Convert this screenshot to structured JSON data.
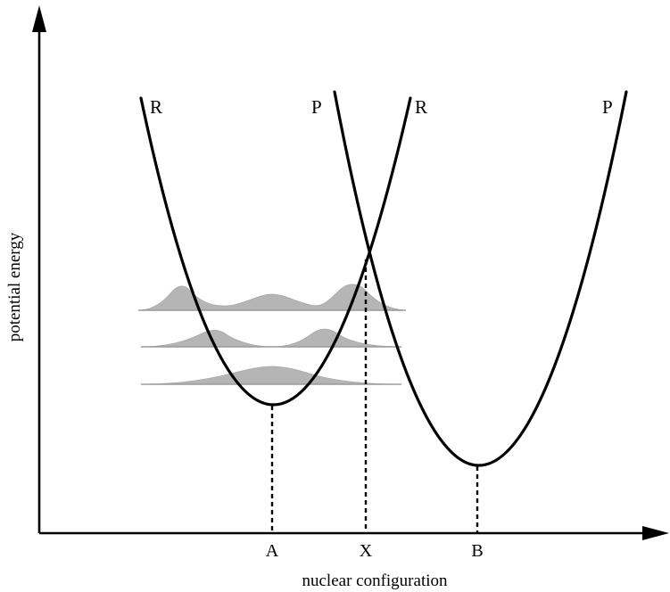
{
  "diagram": {
    "curve_labels": {
      "reactant_left": "R",
      "product_left": "P",
      "reactant_right": "R",
      "product_right": "P"
    },
    "points": {
      "a": "A",
      "x": "X",
      "b": "B"
    },
    "axes": {
      "x_label": "nuclear configuration",
      "y_label": "potential energy"
    },
    "colors": {
      "curve": "#000000",
      "wavefunction": "#a9a9a9"
    }
  }
}
